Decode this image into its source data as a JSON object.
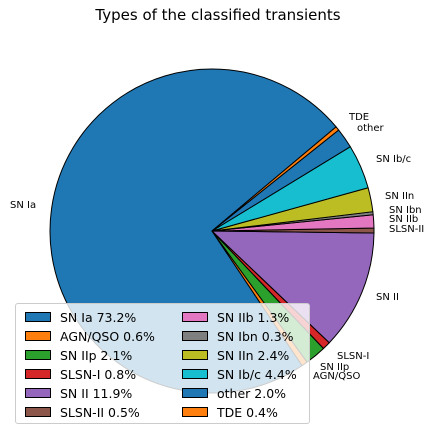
{
  "chart_data": {
    "type": "pie",
    "title": "Types of the classified transients",
    "slices": [
      {
        "label": "SN Ia",
        "legend": "SN Ia 73.2%",
        "value": 73.2,
        "color": "#1f77b4"
      },
      {
        "label": "AGN/QSO",
        "legend": "AGN/QSO 0.6%",
        "value": 0.6,
        "color": "#ff7f0e"
      },
      {
        "label": "SN IIp",
        "legend": "SN IIp 2.1%",
        "value": 2.1,
        "color": "#2ca02c"
      },
      {
        "label": "SLSN-I",
        "legend": "SLSN-I 0.8%",
        "value": 0.8,
        "color": "#d62728"
      },
      {
        "label": "SN II",
        "legend": "SN II 11.9%",
        "value": 11.9,
        "color": "#9467bd"
      },
      {
        "label": "SLSN-II",
        "legend": "SLSN-II 0.5%",
        "value": 0.5,
        "color": "#8c564b"
      },
      {
        "label": "SN IIb",
        "legend": "SN IIb 1.3%",
        "value": 1.3,
        "color": "#e377c2"
      },
      {
        "label": "SN Ibn",
        "legend": "SN Ibn 0.3%",
        "value": 0.3,
        "color": "#7f7f7f"
      },
      {
        "label": "SN IIn",
        "legend": "SN IIn 2.4%",
        "value": 2.4,
        "color": "#bcbd22"
      },
      {
        "label": "SN Ib/c",
        "legend": "SN Ib/c 4.4%",
        "value": 4.4,
        "color": "#17becf"
      },
      {
        "label": "other",
        "legend": "other 2.0%",
        "value": 2.0,
        "color": "#1f77b4"
      },
      {
        "label": "TDE",
        "legend": "TDE 0.4%",
        "value": 0.4,
        "color": "#ff7f0e"
      }
    ],
    "start_angle": 40,
    "direction": "counterclockwise",
    "legend_position": "lower-left",
    "legend_columns": 2
  }
}
